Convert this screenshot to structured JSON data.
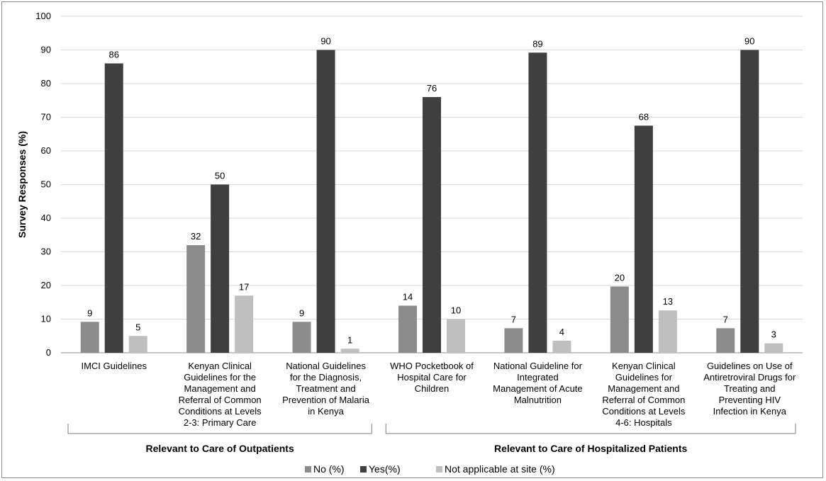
{
  "chart_data": {
    "type": "bar",
    "title": "",
    "ylabel": "Survey Responses (%)",
    "xlabel": "",
    "ylim": [
      0,
      100
    ],
    "yticks": [
      0,
      10,
      20,
      30,
      40,
      50,
      60,
      70,
      80,
      90,
      100
    ],
    "grid": true,
    "legend_position": "bottom",
    "categories": [
      [
        "IMCI Guidelines"
      ],
      [
        "Kenyan Clinical",
        "Guidelines for the",
        "Management and",
        "Referral of Common",
        "Conditions at Levels",
        "2-3: Primary Care"
      ],
      [
        "National Guidelines",
        "for the Diagnosis,",
        "Treatment and",
        "Prevention of Malaria",
        "in Kenya"
      ],
      [
        "WHO Pocketbook of",
        "Hospital Care for",
        "Children"
      ],
      [
        "National Guideline for",
        "Integrated",
        "Management of Acute",
        "Malnutrition"
      ],
      [
        "Kenyan Clinical",
        "Guidelines for",
        "Management and",
        "Referral of Common",
        "Conditions at Levels",
        "4-6: Hospitals"
      ],
      [
        "Guidelines on Use of",
        "Antiretroviral Drugs for",
        "Treating and",
        "Preventing HIV",
        "Infection in Kenya"
      ]
    ],
    "series": [
      {
        "name": "No (%)",
        "color": "#8c8c8c",
        "values": [
          9,
          32,
          9,
          14,
          7,
          20,
          7
        ],
        "heights": [
          9.2,
          32,
          9.2,
          14,
          7.3,
          19.7,
          7.3
        ]
      },
      {
        "name": "Yes(%)",
        "color": "#3f3f3f",
        "values": [
          86,
          50,
          90,
          76,
          89,
          68,
          90
        ],
        "heights": [
          86,
          50,
          90,
          76,
          89.2,
          67.5,
          90
        ]
      },
      {
        "name": "Not applicable at site (%)",
        "color": "#bfbfbf",
        "values": [
          5,
          17,
          1,
          10,
          4,
          13,
          3
        ],
        "heights": [
          5,
          17,
          1.2,
          10,
          3.6,
          12.6,
          2.8
        ]
      }
    ],
    "groups": [
      {
        "label": "Relevant to Care of Outpatients",
        "categories": [
          0,
          1,
          2
        ]
      },
      {
        "label": "Relevant to Care of Hospitalized Patients",
        "categories": [
          3,
          4,
          5,
          6
        ]
      }
    ]
  }
}
